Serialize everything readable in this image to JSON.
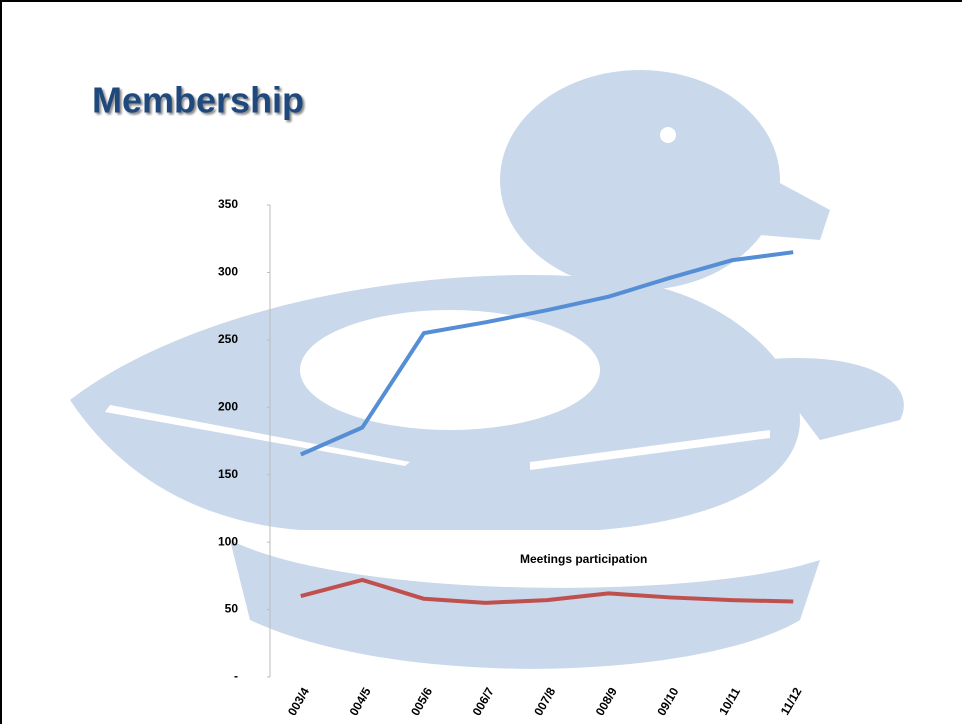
{
  "chart_data": {
    "type": "line",
    "title": "Membership",
    "categories": [
      "003/4",
      "004/5",
      "005/6",
      "006/7",
      "007/8",
      "008/9",
      "09/10",
      "10/11",
      "11/12"
    ],
    "series": [
      {
        "color": "#558ed5",
        "values": [
          165,
          185,
          255,
          263,
          272,
          282,
          296,
          309,
          315
        ]
      },
      {
        "name": "Meetings participation",
        "color": "#c0504d",
        "values": [
          60,
          72,
          58,
          55,
          57,
          62,
          59,
          57,
          56
        ]
      }
    ],
    "ylim": [
      0,
      350
    ],
    "yticks": [
      {
        "value": 0,
        "label": "-"
      },
      50,
      100,
      150,
      200,
      250,
      300,
      350
    ]
  }
}
